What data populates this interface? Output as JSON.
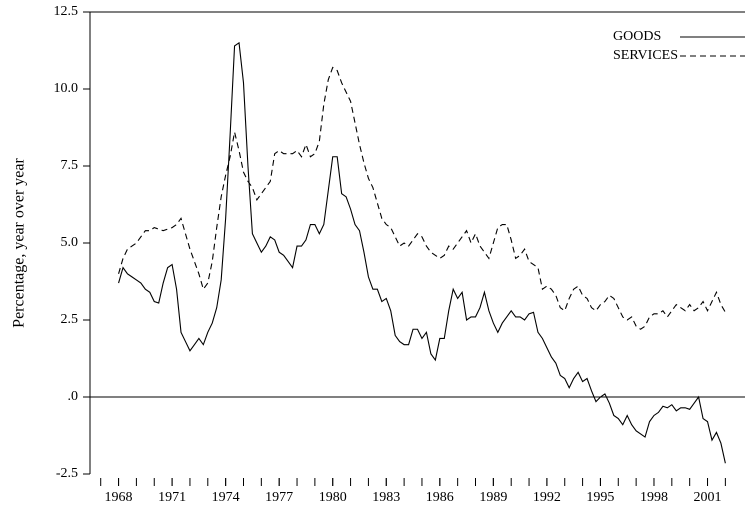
{
  "chart_data": {
    "type": "line",
    "ylabel": "Percentage, year over year",
    "x": [
      1968,
      1968.25,
      1968.5,
      1968.75,
      1969,
      1969.25,
      1969.5,
      1969.75,
      1970,
      1970.25,
      1970.5,
      1970.75,
      1971,
      1971.25,
      1971.5,
      1971.75,
      1972,
      1972.25,
      1972.5,
      1972.75,
      1973,
      1973.25,
      1973.5,
      1973.75,
      1974,
      1974.25,
      1974.5,
      1974.75,
      1975,
      1975.25,
      1975.5,
      1975.75,
      1976,
      1976.25,
      1976.5,
      1976.75,
      1977,
      1977.25,
      1977.5,
      1977.75,
      1978,
      1978.25,
      1978.5,
      1978.75,
      1979,
      1979.25,
      1979.5,
      1979.75,
      1980,
      1980.25,
      1980.5,
      1980.75,
      1981,
      1981.25,
      1981.5,
      1981.75,
      1982,
      1982.25,
      1982.5,
      1982.75,
      1983,
      1983.25,
      1983.5,
      1983.75,
      1984,
      1984.25,
      1984.5,
      1984.75,
      1985,
      1985.25,
      1985.5,
      1985.75,
      1986,
      1986.25,
      1986.5,
      1986.75,
      1987,
      1987.25,
      1987.5,
      1987.75,
      1988,
      1988.25,
      1988.5,
      1988.75,
      1989,
      1989.25,
      1989.5,
      1989.75,
      1990,
      1990.25,
      1990.5,
      1990.75,
      1991,
      1991.25,
      1991.5,
      1991.75,
      1992,
      1992.25,
      1992.5,
      1992.75,
      1993,
      1993.25,
      1993.5,
      1993.75,
      1994,
      1994.25,
      1994.5,
      1994.75,
      1995,
      1995.25,
      1995.5,
      1995.75,
      1996,
      1996.25,
      1996.5,
      1996.75,
      1997,
      1997.25,
      1997.5,
      1997.75,
      1998,
      1998.25,
      1998.5,
      1998.75,
      1999,
      1999.25,
      1999.5,
      1999.75,
      2000,
      2000.25,
      2000.5,
      2000.75,
      2001,
      2001.25,
      2001.5,
      2001.75,
      2002
    ],
    "series": [
      {
        "name": "GOODS",
        "color": "#000000",
        "dash": "solid",
        "values": [
          3.7,
          4.2,
          4.0,
          3.9,
          3.8,
          3.7,
          3.5,
          3.4,
          3.1,
          3.05,
          3.7,
          4.2,
          4.3,
          3.5,
          2.1,
          1.8,
          1.5,
          1.7,
          1.9,
          1.7,
          2.1,
          2.4,
          2.9,
          3.8,
          5.8,
          8.5,
          11.4,
          11.5,
          10.2,
          7.5,
          5.3,
          5.0,
          4.7,
          4.9,
          5.2,
          5.1,
          4.7,
          4.6,
          4.4,
          4.2,
          4.9,
          4.9,
          5.1,
          5.6,
          5.6,
          5.3,
          5.6,
          6.7,
          7.8,
          7.8,
          6.6,
          6.5,
          6.1,
          5.6,
          5.4,
          4.7,
          3.9,
          3.5,
          3.5,
          3.1,
          3.2,
          2.8,
          2.0,
          1.8,
          1.7,
          1.7,
          2.2,
          2.2,
          1.9,
          2.1,
          1.4,
          1.2,
          1.9,
          1.9,
          2.8,
          3.5,
          3.2,
          3.4,
          2.5,
          2.6,
          2.6,
          2.9,
          3.4,
          2.8,
          2.4,
          2.1,
          2.4,
          2.6,
          2.8,
          2.6,
          2.6,
          2.5,
          2.7,
          2.75,
          2.1,
          1.9,
          1.6,
          1.3,
          1.1,
          0.7,
          0.6,
          0.3,
          0.6,
          0.8,
          0.5,
          0.6,
          0.2,
          -0.15,
          0.0,
          0.1,
          -0.2,
          -0.6,
          -0.7,
          -0.9,
          -0.6,
          -0.9,
          -1.1,
          -1.2,
          -1.3,
          -0.8,
          -0.6,
          -0.5,
          -0.3,
          -0.35,
          -0.25,
          -0.45,
          -0.35,
          -0.35,
          -0.4,
          -0.2,
          0.0,
          -0.7,
          -0.8,
          -1.4,
          -1.15,
          -1.5,
          -2.15
        ]
      },
      {
        "name": "SERVICES",
        "color": "#000000",
        "dash": "dashed",
        "values": [
          4.0,
          4.5,
          4.8,
          4.9,
          5.0,
          5.2,
          5.4,
          5.4,
          5.5,
          5.45,
          5.4,
          5.45,
          5.5,
          5.6,
          5.8,
          5.3,
          4.8,
          4.4,
          4.0,
          3.5,
          3.7,
          4.4,
          5.5,
          6.5,
          7.2,
          7.8,
          8.6,
          8.0,
          7.3,
          7.0,
          6.8,
          6.4,
          6.6,
          6.8,
          7.0,
          7.9,
          8.0,
          7.9,
          7.9,
          7.9,
          8.0,
          7.8,
          8.2,
          7.8,
          7.9,
          8.3,
          9.5,
          10.3,
          10.7,
          10.6,
          10.2,
          9.9,
          9.6,
          8.9,
          8.2,
          7.6,
          7.1,
          6.8,
          6.3,
          5.8,
          5.6,
          5.5,
          5.2,
          4.9,
          5.0,
          4.9,
          5.1,
          5.3,
          5.2,
          4.9,
          4.7,
          4.6,
          4.5,
          4.6,
          4.9,
          4.8,
          5.0,
          5.2,
          5.4,
          5.0,
          5.3,
          4.9,
          4.7,
          4.5,
          5.0,
          5.5,
          5.6,
          5.6,
          5.1,
          4.5,
          4.6,
          4.8,
          4.4,
          4.3,
          4.2,
          3.5,
          3.6,
          3.5,
          3.3,
          2.9,
          2.8,
          3.2,
          3.5,
          3.6,
          3.3,
          3.2,
          2.9,
          2.8,
          3.0,
          3.1,
          3.3,
          3.2,
          2.9,
          2.6,
          2.5,
          2.6,
          2.3,
          2.2,
          2.3,
          2.6,
          2.7,
          2.7,
          2.8,
          2.6,
          2.8,
          3.0,
          2.9,
          2.8,
          3.0,
          2.8,
          2.9,
          3.1,
          2.8,
          3.1,
          3.4,
          3.0,
          2.75
        ]
      }
    ],
    "xlim": [
      1966.4,
      2003.1
    ],
    "xticks": [
      1968,
      1971,
      1974,
      1977,
      1980,
      1983,
      1986,
      1989,
      1992,
      1995,
      1998,
      2001
    ],
    "xminorticks": [
      1967,
      1968,
      1969,
      1970,
      1971,
      1972,
      1973,
      1974,
      1975,
      1976,
      1977,
      1978,
      1979,
      1980,
      1981,
      1982,
      1983,
      1984,
      1985,
      1986,
      1987,
      1988,
      1989,
      1990,
      1991,
      1992,
      1993,
      1994,
      1995,
      1996,
      1997,
      1998,
      1999,
      2000,
      2001,
      2002
    ],
    "ylim": [
      -2.5,
      12.5
    ],
    "yticks": [
      -2.5,
      {
        "value": 0,
        "label": ".0"
      },
      2.5,
      {
        "value": 5,
        "label": "5.0"
      },
      {
        "value": 7.5,
        "label": "7.5"
      },
      {
        "value": 10,
        "label": "10.0"
      },
      12.5
    ],
    "zero_line": true,
    "legend": "top-right"
  }
}
